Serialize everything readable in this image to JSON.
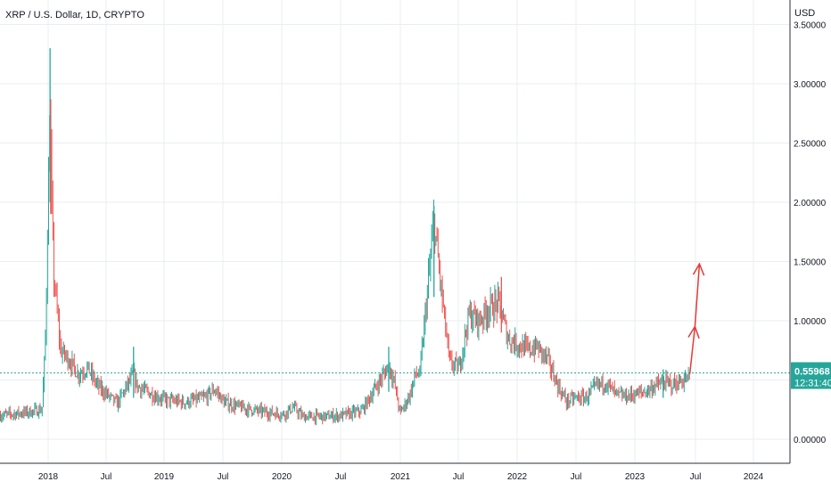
{
  "header": {
    "symbol_title": "XRP / U.S. Dollar, 1D, CRYPTO"
  },
  "price_axis": {
    "currency": "USD"
  },
  "last_price": {
    "value": "0.55968",
    "countdown": "12:31:40"
  },
  "colors": {
    "up": "#26a69a",
    "down": "#ef5350",
    "arrow": "#e53935",
    "grid": "#e9eef2",
    "axis_text": "#131722"
  },
  "chart_data": {
    "type": "line",
    "title": "XRP / U.S. Dollar, 1D, CRYPTO",
    "ylabel": "USD",
    "ylim": [
      -0.2,
      3.55
    ],
    "yticks": [
      "0.00000",
      "0.50000",
      "1.00000",
      "1.50000",
      "2.00000",
      "2.50000",
      "3.00000",
      "3.50000"
    ],
    "x_ticks": [
      "2018",
      "Jul",
      "2019",
      "Jul",
      "2020",
      "Jul",
      "2021",
      "Jul",
      "2022",
      "Jul",
      "2023",
      "Jul",
      "2024"
    ],
    "grid": true,
    "series": [
      {
        "x": [
          "2017-08",
          "2017-10",
          "2017-11",
          "2017-12-10",
          "2017-12-20",
          "2018-01-04",
          "2018-01-07",
          "2018-01-15",
          "2018-02-06",
          "2018-03",
          "2018-04",
          "2018-05",
          "2018-06",
          "2018-08",
          "2018-09-21",
          "2018-10",
          "2018-11",
          "2018-12",
          "2019-01",
          "2019-03",
          "2019-05",
          "2019-06",
          "2019-07",
          "2019-09",
          "2019-11",
          "2020-01",
          "2020-02",
          "2020-03",
          "2020-05",
          "2020-07",
          "2020-09",
          "2020-11-24",
          "2020-12-10",
          "2020-12-29",
          "2021-01-15",
          "2021-02-01",
          "2021-02-15",
          "2021-03",
          "2021-04-14",
          "2021-05",
          "2021-06",
          "2021-07",
          "2021-08",
          "2021-09",
          "2021-10",
          "2021-11",
          "2021-12",
          "2022-01",
          "2022-02",
          "2022-03",
          "2022-04",
          "2022-05-10",
          "2022-06",
          "2022-07",
          "2022-08",
          "2022-09",
          "2022-10",
          "2022-11",
          "2022-12",
          "2023-01",
          "2023-02",
          "2023-03",
          "2023-04",
          "2023-05",
          "2023-06-20"
        ],
        "values": [
          0.2,
          0.22,
          0.23,
          0.25,
          0.8,
          2.85,
          2.2,
          1.4,
          0.75,
          0.68,
          0.55,
          0.6,
          0.45,
          0.3,
          0.55,
          0.45,
          0.4,
          0.36,
          0.33,
          0.31,
          0.35,
          0.42,
          0.31,
          0.26,
          0.23,
          0.21,
          0.27,
          0.19,
          0.19,
          0.2,
          0.24,
          0.62,
          0.5,
          0.22,
          0.3,
          0.4,
          0.55,
          0.55,
          1.85,
          1.4,
          0.65,
          0.6,
          1.05,
          1.0,
          1.1,
          1.15,
          0.85,
          0.8,
          0.75,
          0.78,
          0.68,
          0.42,
          0.32,
          0.35,
          0.35,
          0.45,
          0.48,
          0.38,
          0.36,
          0.38,
          0.4,
          0.45,
          0.48,
          0.46,
          0.52
        ]
      }
    ],
    "annotations": [
      {
        "type": "arrow",
        "text": ""
      },
      {
        "type": "arrow",
        "text": ""
      }
    ]
  }
}
